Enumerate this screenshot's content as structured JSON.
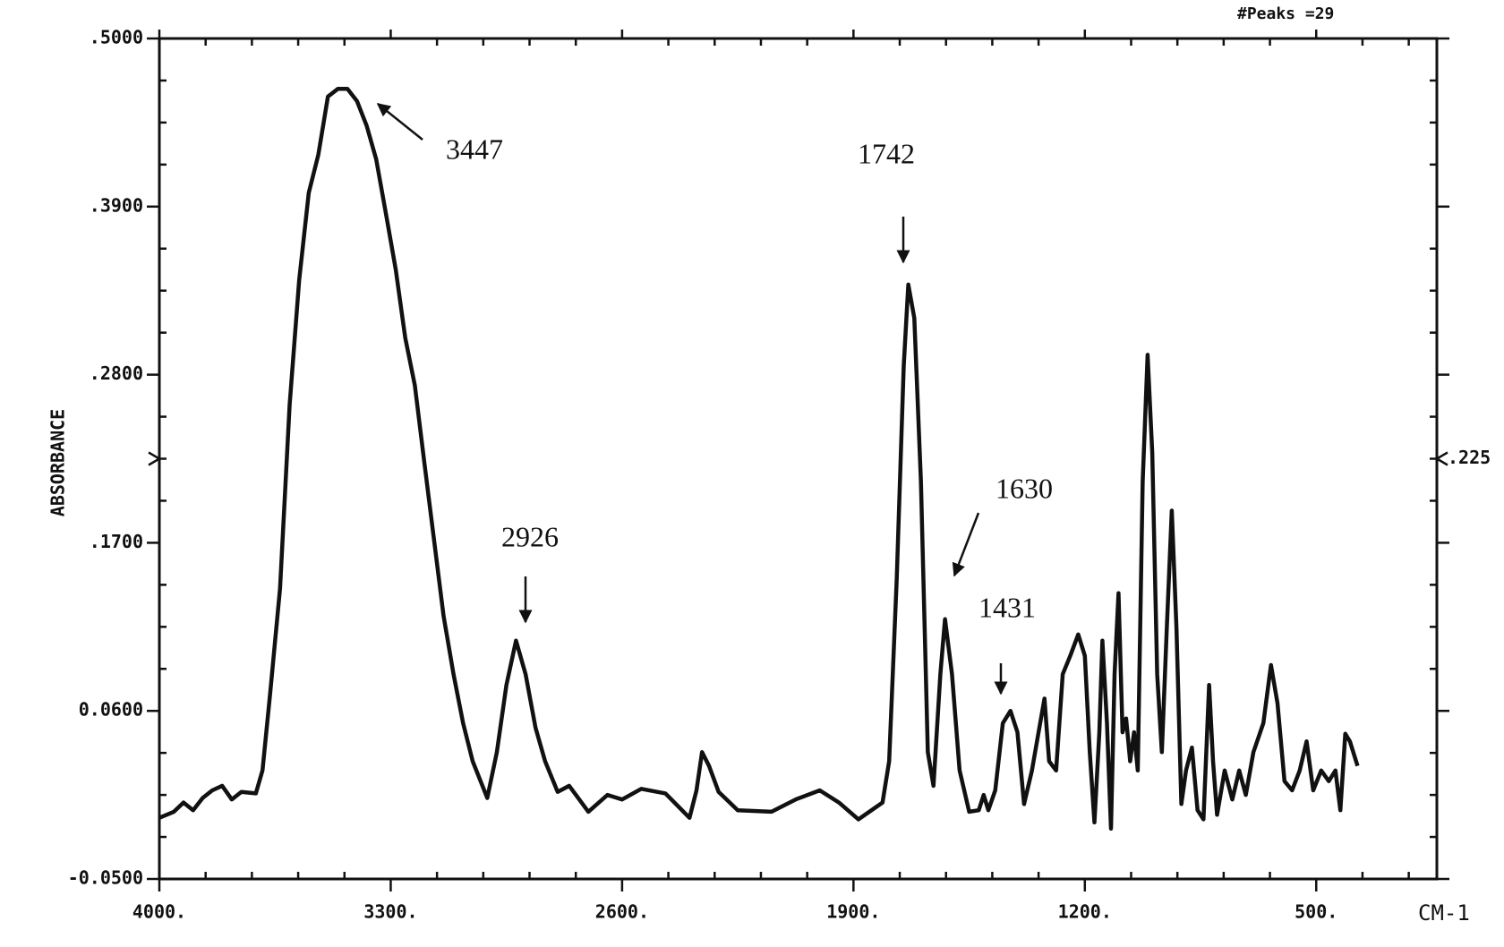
{
  "chart_data": {
    "type": "line",
    "title": "#Peaks =29",
    "ylabel": "ABSORBANCE",
    "xlabel": "CM-1",
    "color": "#111111",
    "xlim": [
      4000,
      135
    ],
    "ylim": [
      -0.05,
      0.5
    ],
    "xticks": [
      {
        "value": 4000,
        "label": "4000."
      },
      {
        "value": 3300,
        "label": "3300."
      },
      {
        "value": 2600,
        "label": "2600."
      },
      {
        "value": 1900,
        "label": "1900."
      },
      {
        "value": 1200,
        "label": "1200."
      },
      {
        "value": 500,
        "label": "500."
      }
    ],
    "yticks": [
      {
        "value": -0.05,
        "label": "-0.0500"
      },
      {
        "value": 0.06,
        "label": "0.0600"
      },
      {
        "value": 0.17,
        "label": ".1700"
      },
      {
        "value": 0.28,
        "label": ".2800"
      },
      {
        "value": 0.39,
        "label": ".3900"
      },
      {
        "value": 0.5,
        "label": ".5000"
      }
    ],
    "y_marker": {
      "value": 0.225,
      "label": ".225"
    },
    "annotations": [
      "3447",
      "2926",
      "1742",
      "1630",
      "1431"
    ],
    "x": [
      4000,
      3956,
      3927,
      3898,
      3869,
      3840,
      3810,
      3781,
      3752,
      3708,
      3688,
      3665,
      3635,
      3606,
      3577,
      3548,
      3519,
      3490,
      3460,
      3431,
      3402,
      3373,
      3344,
      3315,
      3285,
      3256,
      3227,
      3198,
      3169,
      3140,
      3110,
      3081,
      3052,
      3008,
      2979,
      2950,
      2921,
      2892,
      2862,
      2833,
      2795,
      2760,
      2702,
      2644,
      2600,
      2542,
      2469,
      2396,
      2375,
      2358,
      2337,
      2308,
      2250,
      2148,
      2075,
      2002,
      1944,
      1885,
      1812,
      1792,
      1769,
      1748,
      1734,
      1716,
      1696,
      1675,
      1658,
      1637,
      1623,
      1602,
      1579,
      1550,
      1521,
      1506,
      1492,
      1471,
      1448,
      1425,
      1404,
      1384,
      1360,
      1340,
      1322,
      1308,
      1287,
      1267,
      1244,
      1220,
      1200,
      1185,
      1171,
      1156,
      1147,
      1133,
      1121,
      1110,
      1098,
      1086,
      1075,
      1063,
      1051,
      1040,
      1025,
      1010,
      996,
      981,
      967,
      952,
      937,
      923,
      908,
      894,
      876,
      859,
      841,
      824,
      812,
      800,
      777,
      754,
      733,
      713,
      690,
      660,
      637,
      617,
      596,
      573,
      550,
      529,
      509,
      485,
      462,
      442,
      427,
      412,
      398,
      375
    ],
    "values": [
      -0.01,
      -0.006,
      0.0,
      -0.005,
      0.003,
      0.008,
      0.011,
      0.002,
      0.007,
      0.006,
      0.021,
      0.071,
      0.14,
      0.26,
      0.342,
      0.399,
      0.424,
      0.462,
      0.467,
      0.467,
      0.459,
      0.443,
      0.421,
      0.386,
      0.349,
      0.304,
      0.273,
      0.222,
      0.172,
      0.122,
      0.084,
      0.052,
      0.027,
      0.003,
      0.033,
      0.077,
      0.106,
      0.084,
      0.049,
      0.027,
      0.007,
      0.011,
      -0.006,
      0.005,
      0.002,
      0.009,
      0.006,
      -0.01,
      0.008,
      0.033,
      0.024,
      0.007,
      -0.005,
      -0.006,
      0.002,
      0.008,
      0.0,
      -0.011,
      0.0,
      0.027,
      0.147,
      0.286,
      0.339,
      0.317,
      0.21,
      0.033,
      0.011,
      0.084,
      0.12,
      0.084,
      0.021,
      -0.006,
      -0.005,
      0.005,
      -0.005,
      0.008,
      0.052,
      0.06,
      0.046,
      -0.001,
      0.021,
      0.046,
      0.068,
      0.027,
      0.021,
      0.084,
      0.096,
      0.11,
      0.096,
      0.033,
      -0.013,
      0.046,
      0.106,
      0.052,
      -0.017,
      0.084,
      0.137,
      0.046,
      0.055,
      0.027,
      0.046,
      0.021,
      0.21,
      0.293,
      0.229,
      0.084,
      0.033,
      0.115,
      0.191,
      0.115,
      -0.001,
      0.021,
      0.036,
      -0.005,
      -0.011,
      0.077,
      0.027,
      -0.008,
      0.021,
      0.002,
      0.021,
      0.005,
      0.033,
      0.052,
      0.09,
      0.065,
      0.014,
      0.008,
      0.021,
      0.04,
      0.008,
      0.021,
      0.014,
      0.021,
      -0.005,
      0.045,
      0.04,
      0.024
    ]
  }
}
